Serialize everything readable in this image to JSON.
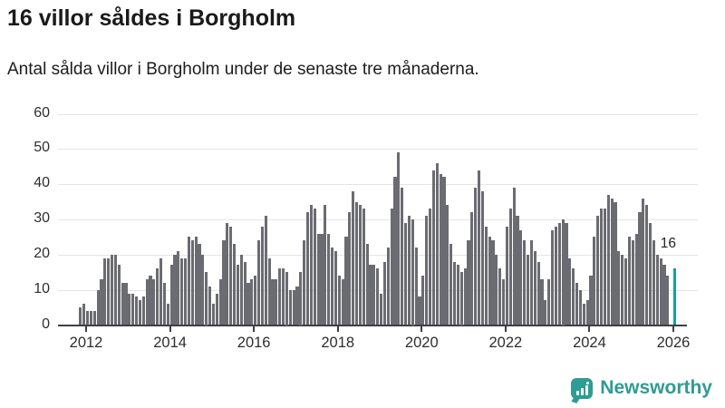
{
  "header": {
    "title": "16 villor såldes i Borgholm",
    "subtitle": "Antal sålda villor i Borgholm under de senaste tre månaderna."
  },
  "chart_data": {
    "type": "bar",
    "title": "16 villor såldes i Borgholm",
    "subtitle": "Antal sålda villor i Borgholm under de senaste tre månaderna.",
    "xlabel": "",
    "ylabel": "",
    "ylim": [
      0,
      60
    ],
    "y_ticks": [
      0,
      10,
      20,
      30,
      40,
      50,
      60
    ],
    "grid": true,
    "legend_position": "none",
    "x_start_month": "2011-11",
    "x_frequency": "monthly",
    "x_tick_years": [
      "2012",
      "2014",
      "2016",
      "2018",
      "2020",
      "2022",
      "2024",
      "2026"
    ],
    "bar_color": "#6b6b72",
    "highlight_color": "#14a09b",
    "highlight_index": 170,
    "annotation_label": "16",
    "values": [
      5,
      6,
      4,
      4,
      4,
      10,
      13,
      19,
      19,
      20,
      20,
      17,
      12,
      12,
      9,
      9,
      8,
      7,
      8,
      13,
      14,
      13,
      16,
      19,
      12,
      6,
      17,
      20,
      21,
      19,
      19,
      25,
      24,
      25,
      23,
      20,
      15,
      11,
      6,
      9,
      13,
      24,
      29,
      28,
      23,
      17,
      20,
      18,
      12,
      13,
      14,
      24,
      28,
      31,
      19,
      13,
      13,
      16,
      16,
      15,
      10,
      10,
      11,
      15,
      24,
      32,
      34,
      33,
      26,
      26,
      34,
      26,
      22,
      21,
      14,
      13,
      25,
      32,
      38,
      35,
      34,
      33,
      23,
      17,
      17,
      16,
      9,
      18,
      22,
      33,
      42,
      49,
      39,
      29,
      31,
      30,
      22,
      8,
      14,
      31,
      33,
      44,
      46,
      43,
      42,
      34,
      23,
      18,
      17,
      15,
      16,
      24,
      32,
      39,
      44,
      38,
      28,
      25,
      24,
      20,
      16,
      13,
      28,
      33,
      39,
      31,
      27,
      24,
      20,
      24,
      21,
      18,
      13,
      7,
      13,
      27,
      28,
      29,
      30,
      29,
      19,
      16,
      12,
      10,
      6,
      7,
      14,
      25,
      31,
      33,
      33,
      37,
      36,
      35,
      21,
      20,
      19,
      25,
      24,
      26,
      32,
      36,
      34,
      29,
      24,
      20,
      19,
      17,
      14,
      null,
      16
    ]
  },
  "footer": {
    "brand": "Newsworthy",
    "logo_icon": "bar-chart-speech-bubble-icon"
  }
}
